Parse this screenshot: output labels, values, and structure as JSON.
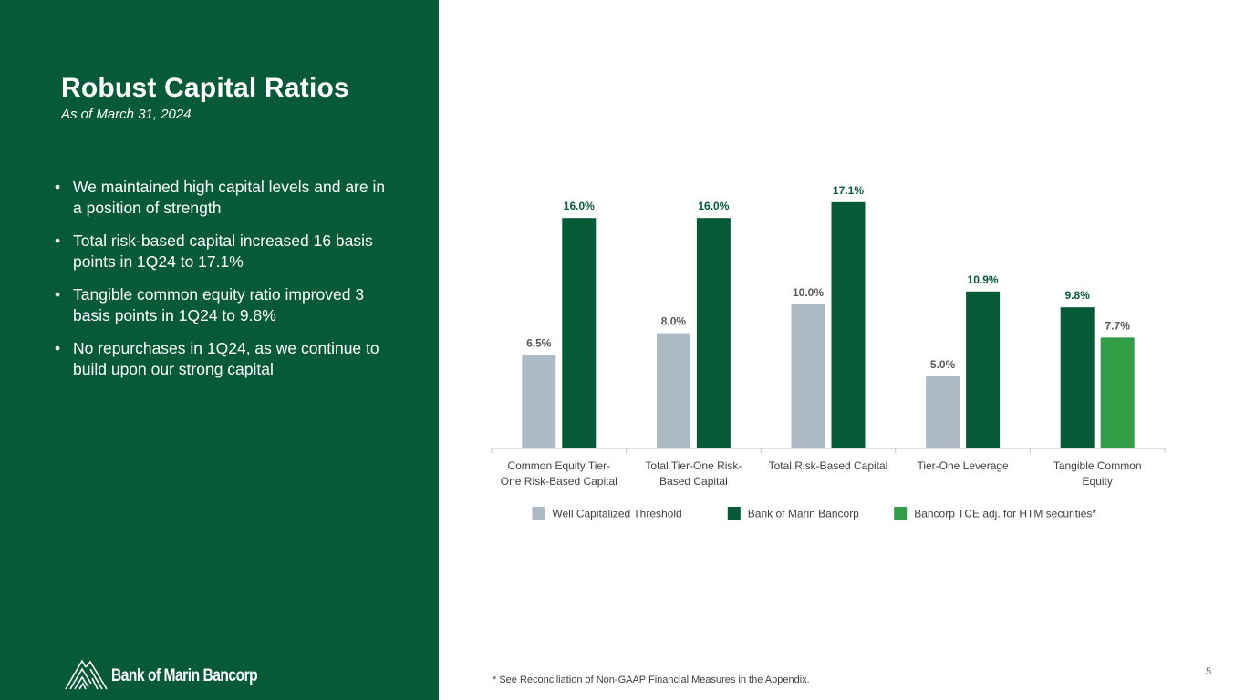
{
  "slide": {
    "title": "Robust Capital Ratios",
    "subtitle": "As of March 31, 2024",
    "bullets": [
      "We maintained high capital levels and are in a position of strength",
      "Total risk-based capital increased 16 basis points in 1Q24 to 17.1%",
      "Tangible common equity ratio improved 3 basis points in 1Q24 to 9.8%",
      "No repurchases in 1Q24, as we continue to build upon our strong capital"
    ],
    "bullet_char": "•",
    "footnote": "* See Reconciliation of Non-GAAP Financial Measures in the Appendix.",
    "page_number": "5",
    "logo_text": "Bank of Marin Bancorp",
    "panel_color": "#065a38"
  },
  "chart_data": {
    "type": "bar",
    "title": "",
    "xlabel": "",
    "ylabel": "",
    "ylim": [
      0,
      20
    ],
    "grid": false,
    "legend_position": "bottom",
    "value_suffix": "%",
    "categories": [
      [
        "Common Equity Tier-",
        "One Risk-Based Capital"
      ],
      [
        "Total Tier-One Risk-",
        "Based Capital"
      ],
      [
        "Total Risk-Based Capital"
      ],
      [
        "Tier-One Leverage"
      ],
      [
        "Tangible Common",
        "Equity"
      ]
    ],
    "series": [
      {
        "name": "Well Capitalized Threshold",
        "color": "#adb9c3",
        "label_color": "#595959",
        "values": [
          6.5,
          8.0,
          10.0,
          5.0,
          null
        ]
      },
      {
        "name": "Bank of Marin Bancorp",
        "color": "#065a38",
        "label_color": "#065a38",
        "values": [
          16.0,
          16.0,
          17.1,
          10.9,
          9.8
        ]
      },
      {
        "name": "Bancorp TCE adj. for HTM securities*",
        "color": "#339c47",
        "label_color": "#595959",
        "values": [
          null,
          null,
          null,
          null,
          7.7
        ]
      }
    ]
  }
}
